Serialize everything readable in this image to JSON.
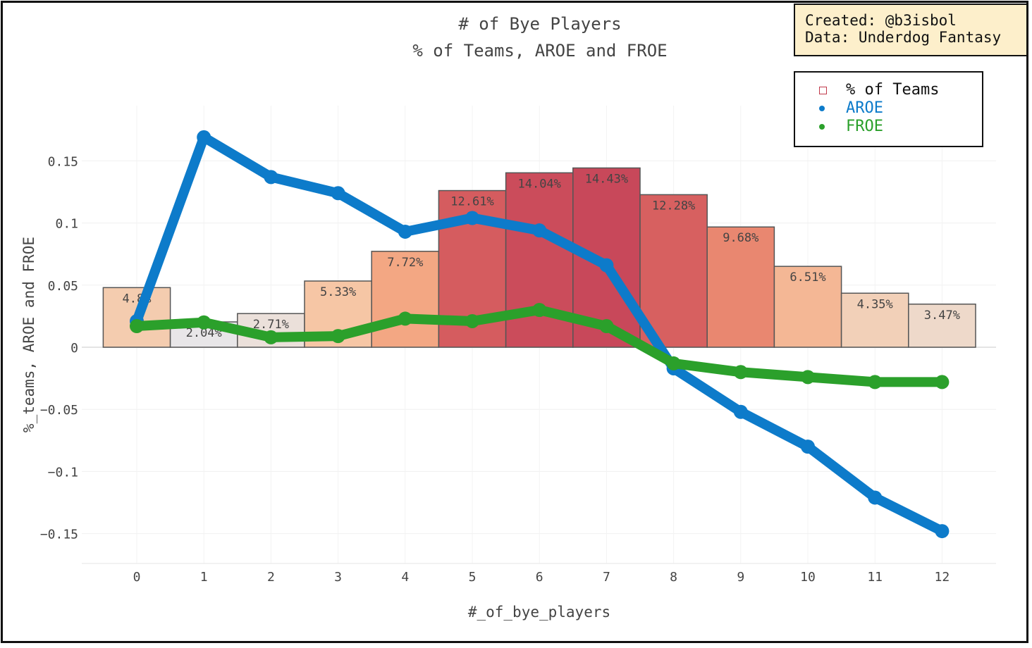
{
  "chart_data": {
    "type": "bar",
    "title": "# of Bye Players",
    "subtitle": "% of Teams, AROE and FROE",
    "xlabel": "#_of_bye_players",
    "ylabel": "%_teams, AROE and FROE",
    "categories": [
      0,
      1,
      2,
      3,
      4,
      5,
      6,
      7,
      8,
      9,
      10,
      11,
      12
    ],
    "ylim": [
      -0.175,
      0.195
    ],
    "yticks": [
      -0.15,
      -0.1,
      -0.05,
      0,
      0.05,
      0.1,
      0.15
    ],
    "ytick_labels": [
      "−0.15",
      "−0.1",
      "−0.05",
      "0",
      "0.05",
      "0.1",
      "0.15"
    ],
    "grid": true,
    "legend_position": "top-right",
    "series": [
      {
        "name": "% of Teams",
        "kind": "bar",
        "values": [
          0.048,
          0.0204,
          0.0271,
          0.0533,
          0.0772,
          0.1261,
          0.1404,
          0.1443,
          0.1228,
          0.0968,
          0.0651,
          0.0435,
          0.0347
        ],
        "labels": [
          "4.8%",
          "2.04%",
          "2.71%",
          "5.33%",
          "7.72%",
          "12.61%",
          "14.04%",
          "14.43%",
          "12.28%",
          "9.68%",
          "6.51%",
          "4.35%",
          "3.47%"
        ],
        "color_scale": [
          "#e8e6e8",
          "#f6c9a8",
          "#f2a07c",
          "#de6a62",
          "#c8485a"
        ]
      },
      {
        "name": "AROE",
        "kind": "line",
        "color": "#0d7bca",
        "values": [
          0.021,
          0.169,
          0.137,
          0.124,
          0.093,
          0.104,
          0.094,
          0.066,
          -0.017,
          -0.052,
          -0.08,
          -0.121,
          -0.148
        ]
      },
      {
        "name": "FROE",
        "kind": "line",
        "color": "#2ba02b",
        "values": [
          0.017,
          0.02,
          0.008,
          0.009,
          0.023,
          0.021,
          0.03,
          0.017,
          -0.013,
          -0.02,
          -0.024,
          -0.028,
          -0.028
        ]
      }
    ]
  },
  "credit": {
    "created": "Created: @b3isbol",
    "data": "Data: Underdog Fantasy"
  }
}
